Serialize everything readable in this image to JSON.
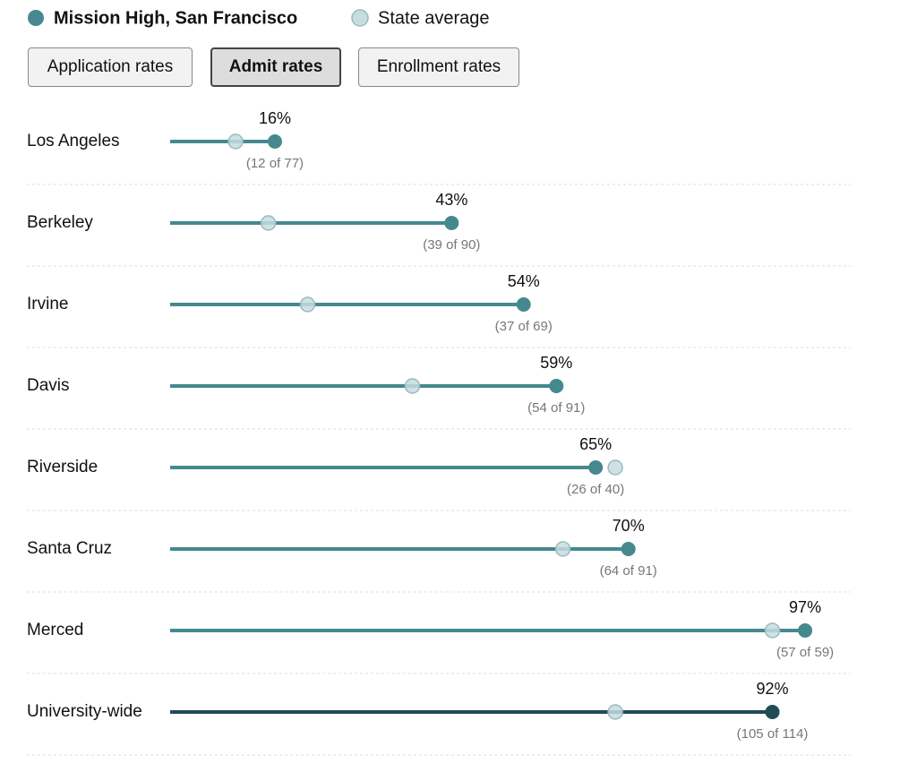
{
  "controls": {
    "buttons": [
      "Application rates",
      "Admit rates",
      "Enrollment rates"
    ],
    "active": 1
  },
  "chart_data": {
    "type": "dumbbell",
    "categories": [
      "Los Angeles",
      "Berkeley",
      "Irvine",
      "Davis",
      "Riverside",
      "Santa Cruz",
      "Merced",
      "University-wide"
    ],
    "series": [
      {
        "name": "Mission High, San Francisco",
        "color": "#45898f",
        "values": [
          16,
          43,
          54,
          59,
          65,
          70,
          97,
          92
        ],
        "value_labels": [
          "16%",
          "43%",
          "54%",
          "59%",
          "65%",
          "70%",
          "97%",
          "92%"
        ],
        "count_labels": [
          "(12 of 77)",
          "(39 of 90)",
          "(37 of 69)",
          "(54 of 91)",
          "(26 of 40)",
          "(64 of 91)",
          "(57 of 59)",
          "(105 of 114)"
        ]
      },
      {
        "name": "State average",
        "color": "#c5dce0",
        "values": [
          10,
          15,
          21,
          37,
          68,
          60,
          92,
          68
        ]
      }
    ],
    "xlim": [
      0,
      100
    ],
    "highlight_category": 7,
    "highlight_color": "#1f4c55"
  }
}
